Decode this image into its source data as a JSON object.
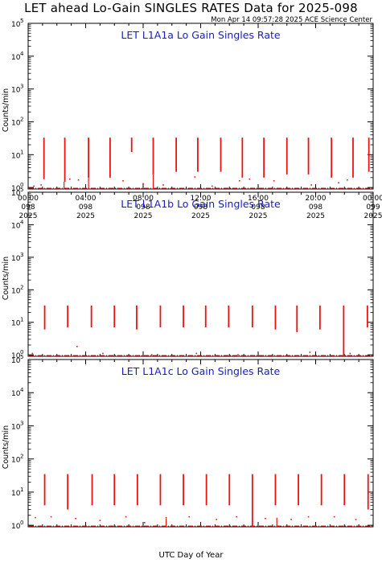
{
  "header": {
    "title": "LET ahead Lo-Gain SINGLES RATES Data for 2025-098",
    "timestamp": "Mon Apr 14 09:57:28 2025 ACE Science Center"
  },
  "xaxis_label": "UTC Day of Year",
  "colors": {
    "data": "#ee1111",
    "panel_title": "#1a1acc",
    "axes": "#000000"
  },
  "chart_data": [
    {
      "type": "line",
      "title": "LET L1A1a Lo Gain Singles Rate",
      "ylabel": "Counts/min",
      "yscale": "log",
      "ylim": [
        0.9,
        100000
      ],
      "xlim": [
        0,
        24
      ],
      "x_ticks": [
        {
          "t": 0,
          "lines": [
            "00:00",
            "098",
            "2025"
          ]
        },
        {
          "t": 4,
          "lines": [
            "04:00",
            "098",
            "2025"
          ]
        },
        {
          "t": 8,
          "lines": [
            "08:00",
            "098",
            "2025"
          ]
        },
        {
          "t": 12,
          "lines": [
            "12:00",
            "098",
            "2025"
          ]
        },
        {
          "t": 16,
          "lines": [
            "16:00",
            "098",
            "2025"
          ]
        },
        {
          "t": 20,
          "lines": [
            "20:00",
            "098",
            "2025"
          ]
        },
        {
          "t": 24,
          "lines": [
            "00:00",
            "099",
            "2025"
          ]
        }
      ],
      "y_ticks": [
        {
          "base": "10",
          "exp": "0"
        },
        {
          "base": "10",
          "exp": "1"
        },
        {
          "base": "10",
          "exp": "2"
        },
        {
          "base": "10",
          "exp": "3"
        },
        {
          "base": "10",
          "exp": "4"
        },
        {
          "base": "10",
          "exp": "5"
        }
      ],
      "spikes": [
        {
          "t": 1.1,
          "low": 1.8,
          "high": 33
        },
        {
          "t": 2.55,
          "low": 1.5,
          "high": 33
        },
        {
          "t": 4.2,
          "low": 2.0,
          "high": 33
        },
        {
          "t": 5.7,
          "low": 2.0,
          "high": 33
        },
        {
          "t": 7.2,
          "low": 12,
          "high": 33
        },
        {
          "t": 8.7,
          "low": 2.5,
          "high": 33
        },
        {
          "t": 10.3,
          "low": 3.0,
          "high": 33
        },
        {
          "t": 11.8,
          "low": 3.0,
          "high": 33
        },
        {
          "t": 13.4,
          "low": 3.0,
          "high": 33
        },
        {
          "t": 14.9,
          "low": 2.0,
          "high": 33
        },
        {
          "t": 16.4,
          "low": 2.0,
          "high": 33
        },
        {
          "t": 18.0,
          "low": 2.5,
          "high": 33
        },
        {
          "t": 19.5,
          "low": 2.5,
          "high": 33
        },
        {
          "t": 21.1,
          "low": 2.0,
          "high": 33
        },
        {
          "t": 22.6,
          "low": 2.0,
          "high": 33
        },
        {
          "t": 23.7,
          "low": 3.0,
          "high": 33
        }
      ],
      "baseline": 0.95,
      "dips": [
        {
          "t": 2.5,
          "low": 0.9,
          "high": 1.5
        },
        {
          "t": 4.2,
          "low": 0.9,
          "high": 2.0
        },
        {
          "t": 8.7,
          "low": 0.9,
          "high": 2.5
        }
      ],
      "scatter": [
        {
          "t": 0.4,
          "y": 1.1
        },
        {
          "t": 0.9,
          "y": 1.2
        },
        {
          "t": 2.9,
          "y": 1.8
        },
        {
          "t": 3.5,
          "y": 1.7
        },
        {
          "t": 6.6,
          "y": 1.6
        },
        {
          "t": 8.0,
          "y": 1.3
        },
        {
          "t": 9.4,
          "y": 1.2
        },
        {
          "t": 11.6,
          "y": 2.1
        },
        {
          "t": 12.8,
          "y": 1.1
        },
        {
          "t": 14.7,
          "y": 1.6
        },
        {
          "t": 15.4,
          "y": 1.8
        },
        {
          "t": 17.1,
          "y": 1.6
        },
        {
          "t": 19.7,
          "y": 1.2
        },
        {
          "t": 21.6,
          "y": 1.4
        },
        {
          "t": 22.2,
          "y": 1.7
        }
      ]
    },
    {
      "type": "line",
      "title": "LET L1A1b Lo Gain Singles Rate",
      "ylabel": "Counts/min",
      "yscale": "log",
      "ylim": [
        0.9,
        100000
      ],
      "xlim": [
        0,
        24
      ],
      "x_ticks": [
        {
          "t": 0,
          "lines": []
        },
        {
          "t": 4,
          "lines": []
        },
        {
          "t": 8,
          "lines": []
        },
        {
          "t": 12,
          "lines": []
        },
        {
          "t": 16,
          "lines": []
        },
        {
          "t": 20,
          "lines": []
        },
        {
          "t": 24,
          "lines": []
        }
      ],
      "y_ticks": [
        {
          "base": "10",
          "exp": "0"
        },
        {
          "base": "10",
          "exp": "1"
        },
        {
          "base": "10",
          "exp": "2"
        },
        {
          "base": "10",
          "exp": "3"
        },
        {
          "base": "10",
          "exp": "4"
        },
        {
          "base": "10",
          "exp": "5"
        }
      ],
      "spikes": [
        {
          "t": 1.15,
          "low": 6,
          "high": 33
        },
        {
          "t": 2.75,
          "low": 7,
          "high": 33
        },
        {
          "t": 4.4,
          "low": 7,
          "high": 33
        },
        {
          "t": 6.0,
          "low": 7,
          "high": 33
        },
        {
          "t": 7.55,
          "low": 6,
          "high": 33
        },
        {
          "t": 9.2,
          "low": 7,
          "high": 33
        },
        {
          "t": 10.8,
          "low": 7,
          "high": 33
        },
        {
          "t": 12.35,
          "low": 7,
          "high": 33
        },
        {
          "t": 13.95,
          "low": 7,
          "high": 33
        },
        {
          "t": 15.6,
          "low": 7,
          "high": 33
        },
        {
          "t": 17.2,
          "low": 6,
          "high": 33
        },
        {
          "t": 18.7,
          "low": 5,
          "high": 33
        },
        {
          "t": 20.3,
          "low": 6,
          "high": 33
        },
        {
          "t": 21.95,
          "low": 0.9,
          "high": 33
        },
        {
          "t": 23.6,
          "low": 7,
          "high": 33
        }
      ],
      "baseline": 0.95,
      "dips": [],
      "scatter": [
        {
          "t": 0.3,
          "y": 1.1
        },
        {
          "t": 3.4,
          "y": 1.8
        },
        {
          "t": 5.2,
          "y": 1.1
        },
        {
          "t": 8.6,
          "y": 1.0
        },
        {
          "t": 11.7,
          "y": 1.1
        },
        {
          "t": 14.6,
          "y": 1.0
        },
        {
          "t": 19.6,
          "y": 1.2
        },
        {
          "t": 22.4,
          "y": 1.1
        }
      ]
    },
    {
      "type": "line",
      "title": "LET L1A1c Lo Gain Singles Rate",
      "ylabel": "Counts/min",
      "yscale": "log",
      "ylim": [
        0.9,
        100000
      ],
      "xlim": [
        0,
        24
      ],
      "x_ticks": [
        {
          "t": 0,
          "lines": []
        },
        {
          "t": 4,
          "lines": []
        },
        {
          "t": 8,
          "lines": []
        },
        {
          "t": 12,
          "lines": []
        },
        {
          "t": 16,
          "lines": []
        },
        {
          "t": 20,
          "lines": []
        },
        {
          "t": 24,
          "lines": []
        }
      ],
      "y_ticks": [
        {
          "base": "10",
          "exp": "0"
        },
        {
          "base": "10",
          "exp": "1"
        },
        {
          "base": "10",
          "exp": "2"
        },
        {
          "base": "10",
          "exp": "3"
        },
        {
          "base": "10",
          "exp": "4"
        },
        {
          "base": "10",
          "exp": "5"
        }
      ],
      "spikes": [
        {
          "t": 1.15,
          "low": 4,
          "high": 35
        },
        {
          "t": 2.75,
          "low": 3,
          "high": 35
        },
        {
          "t": 4.45,
          "low": 4,
          "high": 35
        },
        {
          "t": 6.0,
          "low": 4,
          "high": 35
        },
        {
          "t": 7.6,
          "low": 4,
          "high": 35
        },
        {
          "t": 9.2,
          "low": 4,
          "high": 35
        },
        {
          "t": 10.8,
          "low": 4,
          "high": 35
        },
        {
          "t": 12.4,
          "low": 4,
          "high": 35
        },
        {
          "t": 14.0,
          "low": 4,
          "high": 35
        },
        {
          "t": 15.6,
          "low": 0.9,
          "high": 35
        },
        {
          "t": 17.2,
          "low": 4,
          "high": 35
        },
        {
          "t": 18.8,
          "low": 4,
          "high": 35
        },
        {
          "t": 20.4,
          "low": 4,
          "high": 35
        },
        {
          "t": 22.0,
          "low": 4,
          "high": 35
        },
        {
          "t": 23.65,
          "low": 3,
          "high": 35
        }
      ],
      "baseline": 0.95,
      "dips": [
        {
          "t": 9.6,
          "low": 0.9,
          "high": 1.6
        },
        {
          "t": 17.3,
          "low": 0.9,
          "high": 1.7
        }
      ],
      "scatter": [
        {
          "t": 0.5,
          "y": 1.7
        },
        {
          "t": 1.6,
          "y": 1.8
        },
        {
          "t": 3.3,
          "y": 1.6
        },
        {
          "t": 5.0,
          "y": 1.4
        },
        {
          "t": 6.8,
          "y": 1.8
        },
        {
          "t": 8.1,
          "y": 1.2
        },
        {
          "t": 9.6,
          "y": 1.7
        },
        {
          "t": 11.2,
          "y": 1.8
        },
        {
          "t": 13.1,
          "y": 1.5
        },
        {
          "t": 14.5,
          "y": 1.8
        },
        {
          "t": 16.5,
          "y": 1.6
        },
        {
          "t": 18.3,
          "y": 1.5
        },
        {
          "t": 19.5,
          "y": 1.8
        },
        {
          "t": 21.3,
          "y": 1.8
        },
        {
          "t": 22.8,
          "y": 1.5
        }
      ]
    }
  ]
}
